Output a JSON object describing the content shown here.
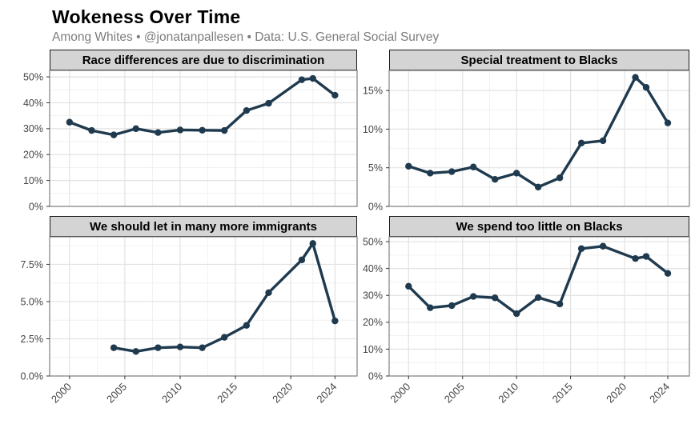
{
  "header": {
    "title": "Wokeness Over Time",
    "subtitle": "Among Whites • @jonatanpallesen • Data: U.S. General Social Survey"
  },
  "colors": {
    "line": "#1f3a4e",
    "point": "#1f3a4e",
    "panel_header_bg": "#d4d4d4",
    "panel_header_border": "#1a1a1a",
    "panel_border": "#808080",
    "grid_major": "#e2e2e2",
    "grid_minor": "#f1f1f1",
    "axis_text": "#454545",
    "tick_mark": "#333333",
    "title_text": "#000000",
    "subtitle_text": "#7d7d7d",
    "background": "#ffffff"
  },
  "axes": {
    "xlim": [
      1998.2,
      2026.0
    ],
    "x_ticks": [
      2000,
      2005,
      2010,
      2015,
      2020,
      2024
    ],
    "x_tick_labels": [
      "2000",
      "2005",
      "2010",
      "2015",
      "2020",
      "2024"
    ],
    "grid": "on",
    "legend": "none"
  },
  "chart_data": [
    {
      "type": "line",
      "title": "Race differences are due to discrimination",
      "x": [
        2000,
        2002,
        2004,
        2006,
        2008,
        2010,
        2012,
        2014,
        2016,
        2018,
        2021,
        2022,
        2024
      ],
      "values": [
        32.5,
        29.3,
        27.6,
        30.0,
        28.5,
        29.5,
        29.4,
        29.3,
        37.0,
        39.8,
        48.9,
        49.4,
        42.9
      ],
      "ylim": [
        0,
        52.5
      ],
      "yticks": [
        0,
        10,
        20,
        30,
        40,
        50
      ],
      "ytick_labels": [
        "0%",
        "10%",
        "20%",
        "30%",
        "40%",
        "50%"
      ],
      "show_x_labels": false
    },
    {
      "type": "line",
      "title": "Special treatment to Blacks",
      "x": [
        2000,
        2002,
        2004,
        2006,
        2008,
        2010,
        2012,
        2014,
        2016,
        2018,
        2021,
        2022,
        2024
      ],
      "values": [
        5.2,
        4.3,
        4.5,
        5.1,
        3.5,
        4.3,
        2.5,
        3.7,
        8.2,
        8.5,
        16.7,
        15.4,
        10.8
      ],
      "ylim": [
        0,
        17.6
      ],
      "yticks": [
        0,
        5,
        10,
        15
      ],
      "ytick_labels": [
        "0%",
        "5%",
        "10%",
        "15%"
      ],
      "show_x_labels": false
    },
    {
      "type": "line",
      "title": "We should let in many more immigrants",
      "x": [
        2004,
        2006,
        2008,
        2010,
        2012,
        2014,
        2016,
        2018,
        2021,
        2022,
        2024
      ],
      "values": [
        1.9,
        1.65,
        1.9,
        1.95,
        1.9,
        2.6,
        3.4,
        5.6,
        7.8,
        8.9,
        3.7
      ],
      "ylim": [
        0,
        9.35
      ],
      "yticks": [
        0,
        2.5,
        5.0,
        7.5
      ],
      "ytick_labels": [
        "0.0%",
        "2.5%",
        "5.0%",
        "7.5%"
      ],
      "show_x_labels": true
    },
    {
      "type": "line",
      "title": "We spend too little on Blacks",
      "x": [
        2000,
        2002,
        2004,
        2006,
        2008,
        2010,
        2012,
        2014,
        2016,
        2018,
        2021,
        2022,
        2024
      ],
      "values": [
        33.4,
        25.4,
        26.2,
        29.6,
        29.1,
        23.2,
        29.2,
        26.8,
        47.4,
        48.3,
        43.7,
        44.5,
        38.2
      ],
      "ylim": [
        0,
        51.8
      ],
      "yticks": [
        0,
        10,
        20,
        30,
        40,
        50
      ],
      "ytick_labels": [
        "0%",
        "10%",
        "20%",
        "30%",
        "40%",
        "50%"
      ],
      "show_x_labels": true
    }
  ]
}
